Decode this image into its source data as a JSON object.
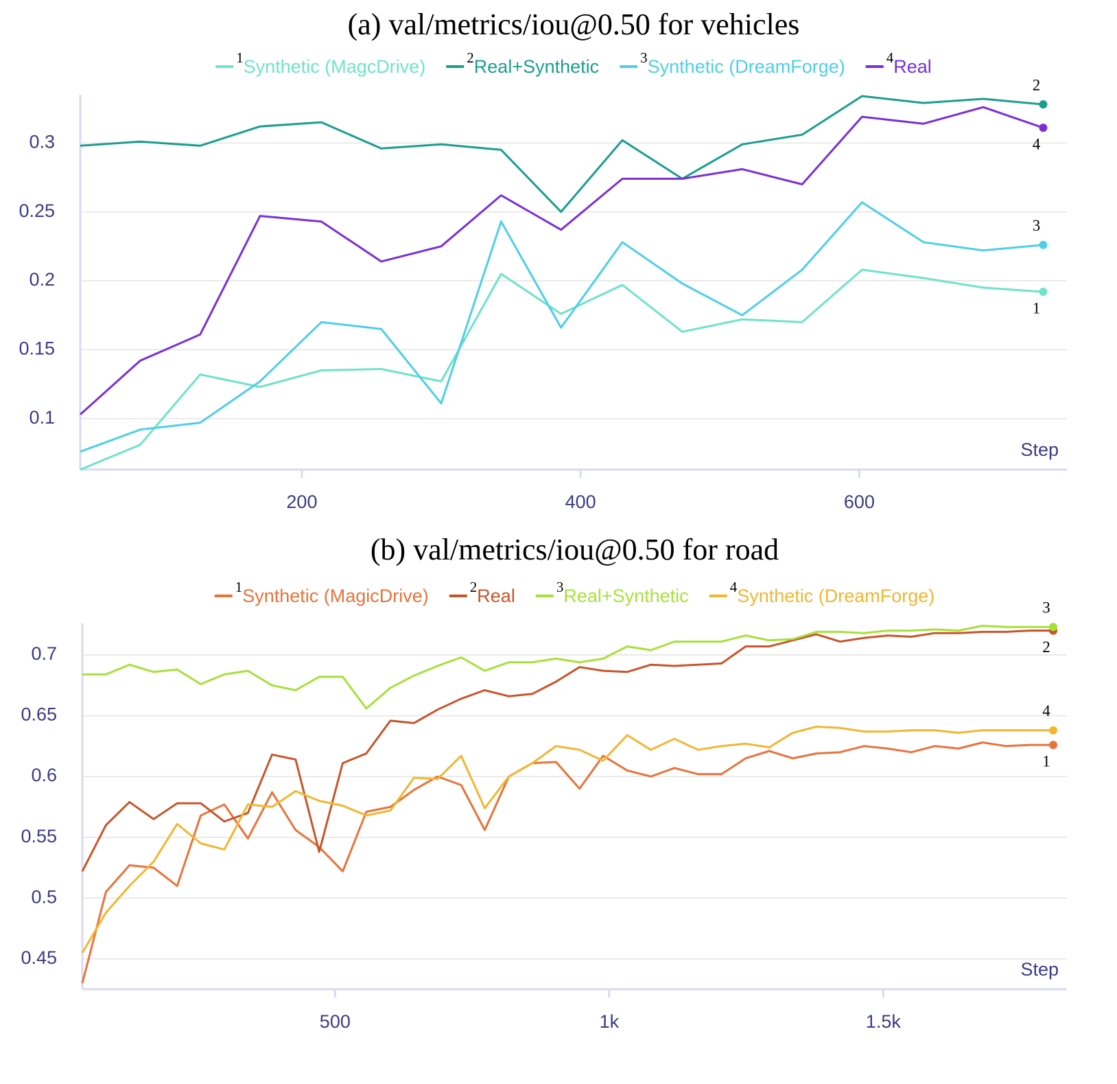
{
  "chart_data": [
    {
      "type": "line",
      "title": "(a) val/metrics/iou@0.50 for vehicles",
      "x_label": "Step",
      "x": [
        41,
        84,
        127,
        170,
        214,
        257,
        300,
        343,
        386,
        430,
        473,
        516,
        559,
        602,
        646,
        689,
        732
      ],
      "xlim": [
        41,
        749
      ],
      "xticks": [
        200,
        400,
        600
      ],
      "ylim": [
        0.063,
        0.335
      ],
      "yticks": [
        0.1,
        0.15,
        0.2,
        0.25,
        0.3
      ],
      "grid": true,
      "series": [
        {
          "label": "1",
          "name": "Synthetic (MagcDrive)",
          "color": "#6ee3c9",
          "values": [
            0.063,
            0.081,
            0.132,
            0.123,
            0.135,
            0.136,
            0.127,
            0.205,
            0.176,
            0.197,
            0.163,
            0.172,
            0.17,
            0.208,
            0.202,
            0.195,
            0.192
          ]
        },
        {
          "label": "2",
          "name": "Real+Synthetic",
          "color": "#1a9e8e",
          "values": [
            0.298,
            0.301,
            0.298,
            0.312,
            0.315,
            0.296,
            0.299,
            0.295,
            0.25,
            0.302,
            0.274,
            0.299,
            0.306,
            0.334,
            0.329,
            0.332,
            0.328
          ]
        },
        {
          "label": "3",
          "name": "Synthetic (DreamForge)",
          "color": "#4dcfe8",
          "values": [
            0.076,
            0.092,
            0.097,
            0.127,
            0.17,
            0.165,
            0.111,
            0.243,
            0.166,
            0.228,
            0.198,
            0.175,
            0.208,
            0.257,
            0.228,
            0.222,
            0.226
          ]
        },
        {
          "label": "4",
          "name": "Real",
          "color": "#7b2fd6",
          "values": [
            0.103,
            0.142,
            0.161,
            0.247,
            0.243,
            0.214,
            0.225,
            0.262,
            0.237,
            0.274,
            0.274,
            0.281,
            0.27,
            0.319,
            0.314,
            0.326,
            0.311
          ]
        }
      ]
    },
    {
      "type": "line",
      "title": "(b) val/metrics/iou@0.50 for road",
      "x_label": "Step",
      "x": [
        39,
        82,
        125,
        169,
        212,
        255,
        298,
        341,
        385,
        428,
        471,
        514,
        557,
        601,
        644,
        687,
        730,
        773,
        817,
        860,
        903,
        946,
        989,
        1033,
        1076,
        1119,
        1162,
        1205,
        1249,
        1292,
        1335,
        1378,
        1421,
        1465,
        1508,
        1551,
        1594,
        1637,
        1681,
        1724,
        1767,
        1810
      ],
      "xlim": [
        39,
        1835
      ],
      "xticks": [
        500,
        {
          "value": 1000,
          "label": "1k"
        },
        {
          "value": 1500,
          "label": "1.5k"
        }
      ],
      "ylim": [
        0.425,
        0.726
      ],
      "yticks": [
        0.45,
        0.5,
        0.55,
        0.6,
        0.65,
        0.7
      ],
      "grid": true,
      "series": [
        {
          "label": "1",
          "name": "Synthetic (MagicDrive)",
          "color": "#e8733a",
          "values": [
            0.43,
            0.505,
            0.527,
            0.525,
            0.51,
            0.568,
            0.577,
            0.549,
            0.587,
            0.556,
            0.542,
            0.522,
            0.571,
            0.575,
            0.589,
            0.6,
            0.593,
            0.556,
            0.6,
            0.611,
            0.612,
            0.59,
            0.617,
            0.605,
            0.6,
            0.607,
            0.602,
            0.602,
            0.615,
            0.621,
            0.615,
            0.619,
            0.62,
            0.625,
            0.623,
            0.62,
            0.625,
            0.623,
            0.628,
            0.625,
            0.626,
            0.626
          ]
        },
        {
          "label": "2",
          "name": "Real",
          "color": "#c8552a",
          "values": [
            0.522,
            0.56,
            0.579,
            0.565,
            0.578,
            0.578,
            0.563,
            0.57,
            0.618,
            0.614,
            0.538,
            0.611,
            0.619,
            0.646,
            0.644,
            0.655,
            0.664,
            0.671,
            0.666,
            0.668,
            0.678,
            0.69,
            0.687,
            0.686,
            0.692,
            0.691,
            0.692,
            0.693,
            0.707,
            0.707,
            0.712,
            0.717,
            0.711,
            0.714,
            0.716,
            0.715,
            0.718,
            0.718,
            0.719,
            0.719,
            0.72,
            0.72
          ]
        },
        {
          "label": "3",
          "name": "Real+Synthetic",
          "color": "#a8e03a",
          "values": [
            0.684,
            0.684,
            0.692,
            0.686,
            0.688,
            0.676,
            0.684,
            0.687,
            0.675,
            0.671,
            0.682,
            0.682,
            0.656,
            0.673,
            0.683,
            0.691,
            0.698,
            0.687,
            0.694,
            0.694,
            0.697,
            0.694,
            0.697,
            0.707,
            0.704,
            0.711,
            0.711,
            0.711,
            0.716,
            0.712,
            0.713,
            0.719,
            0.719,
            0.718,
            0.72,
            0.72,
            0.721,
            0.72,
            0.724,
            0.723,
            0.723,
            0.723
          ]
        },
        {
          "label": "4",
          "name": "Synthetic (DreamForge)",
          "color": "#f2b630",
          "values": [
            0.455,
            0.488,
            0.51,
            0.53,
            0.561,
            0.545,
            0.54,
            0.577,
            0.575,
            0.588,
            0.58,
            0.576,
            0.568,
            0.572,
            0.599,
            0.598,
            0.617,
            0.574,
            0.6,
            0.611,
            0.625,
            0.622,
            0.613,
            0.634,
            0.622,
            0.631,
            0.622,
            0.625,
            0.627,
            0.624,
            0.636,
            0.641,
            0.64,
            0.637,
            0.637,
            0.638,
            0.638,
            0.636,
            0.638,
            0.638,
            0.638,
            0.638
          ]
        }
      ]
    }
  ]
}
